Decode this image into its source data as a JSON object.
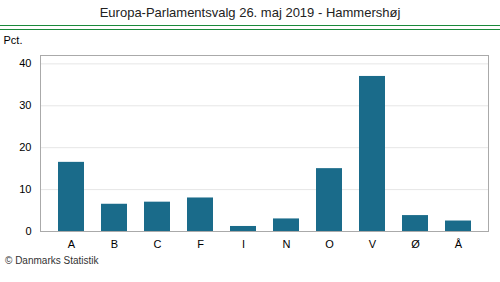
{
  "chart_data": {
    "type": "bar",
    "title": "Europa-Parlamentsvalg 26. maj 2019 - Hammershøj",
    "categories": [
      "A",
      "B",
      "C",
      "F",
      "I",
      "N",
      "O",
      "V",
      "Ø",
      "Å"
    ],
    "values": [
      16.5,
      6.5,
      7.0,
      8.0,
      1.2,
      3.0,
      15.0,
      37.0,
      3.8,
      2.5
    ],
    "color": "#1a6b8a",
    "ylabel": "Pct.",
    "ylim": [
      0,
      42
    ],
    "yticks": [
      0,
      10,
      20,
      30,
      40
    ],
    "grid": true,
    "annotations": [
      "© Danmarks Statistik"
    ]
  }
}
